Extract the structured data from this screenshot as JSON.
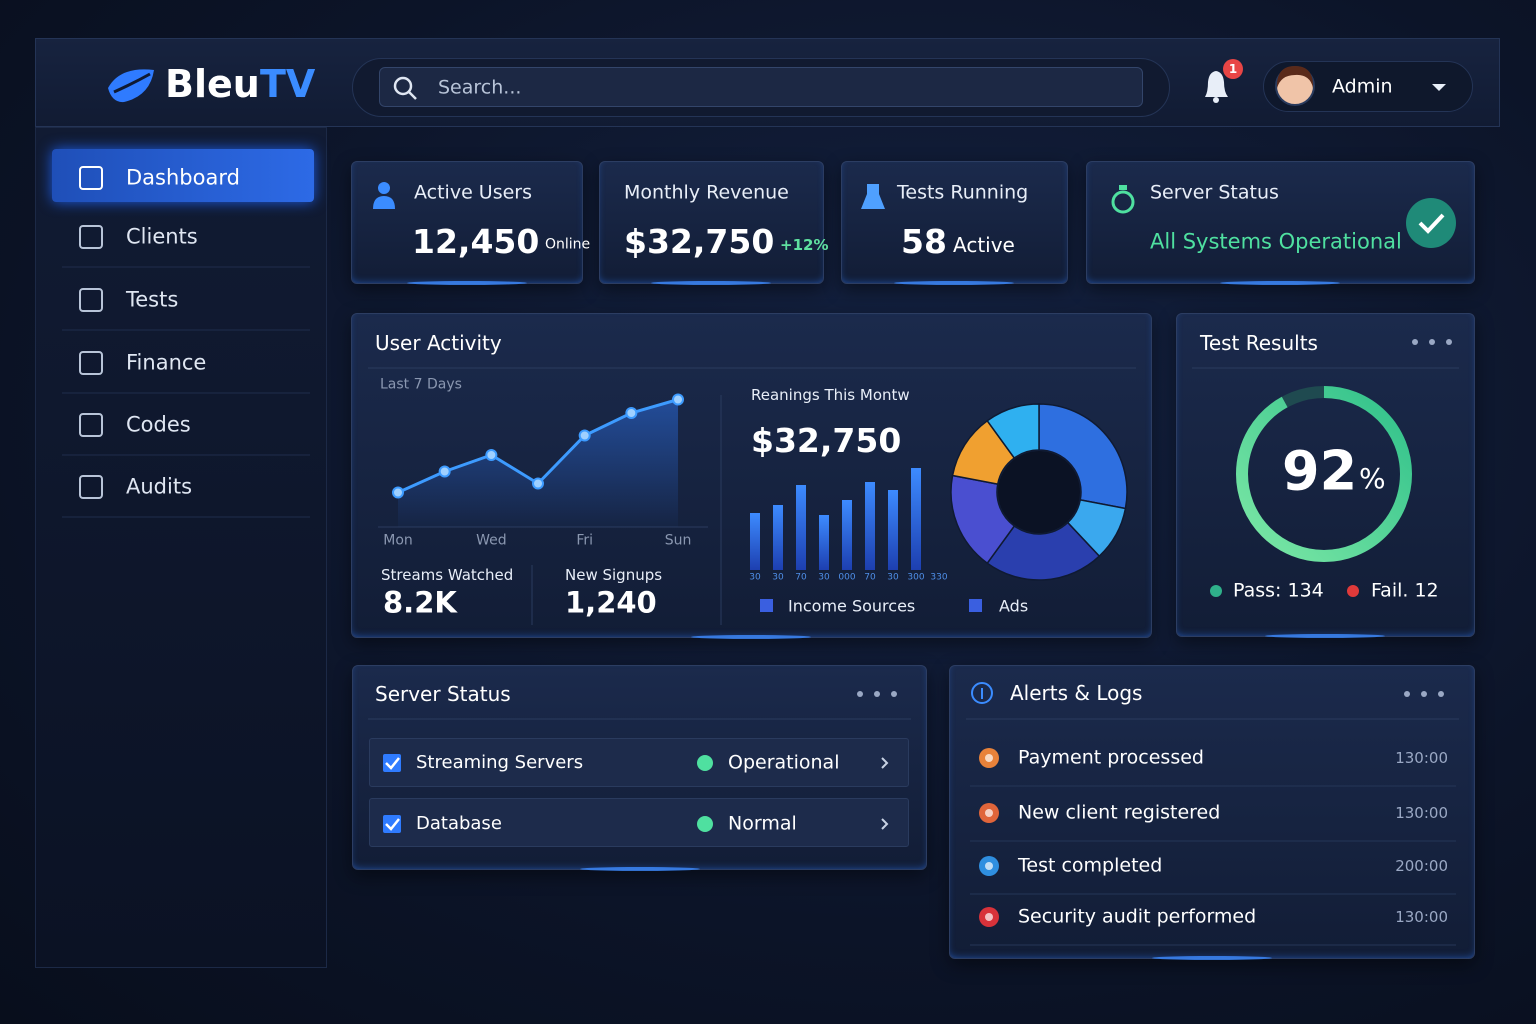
{
  "header": {
    "brand_main": "Bleu",
    "brand_accent": "TV",
    "search_placeholder": "Search...",
    "notification_count": "1",
    "user_name": "Admin"
  },
  "sidebar": {
    "items": [
      "Dashboard",
      "Clients",
      "Tests",
      "Finance",
      "Codes",
      "Audits"
    ],
    "active": 0
  },
  "stat_cards": [
    {
      "label": "Active Users",
      "value": "12,450",
      "note": "Online"
    },
    {
      "label": "Monthly Revenue",
      "value": "$32,750",
      "note": "+12%"
    },
    {
      "label": "Tests Running",
      "value": "58",
      "note": "Active"
    },
    {
      "label": "Server Status",
      "value": "All Systems Operational"
    }
  ],
  "user_activity": {
    "title": "User Activity",
    "period": "Last 7 Days",
    "chart": {
      "type": "line",
      "categories": [
        "Mon",
        null,
        "Wed",
        null,
        "Fri",
        null,
        "Sun"
      ],
      "values": [
        23,
        37,
        48,
        29,
        61,
        76,
        85
      ],
      "ylim": [
        0,
        100
      ],
      "color": "#3d9bff"
    },
    "metrics": [
      {
        "label": "Streams Watched",
        "value": "8.2K"
      },
      {
        "label": "New Signups",
        "value": "1,240"
      }
    ],
    "earnings": {
      "title": "Reanings This Montw",
      "value": "$32,750",
      "bars": {
        "type": "bar",
        "categories": [
          "30",
          "30",
          "70",
          "30",
          "000",
          "70",
          "30",
          "300",
          "330"
        ],
        "values": [
          57,
          65,
          85,
          55,
          70,
          88,
          80,
          102,
          null
        ],
        "ylim": [
          0,
          110
        ],
        "color": "#2f6be8"
      },
      "donut": {
        "type": "pie",
        "values": [
          28,
          10,
          22,
          18,
          12,
          10
        ],
        "colors": [
          "#2e6fe0",
          "#3aa8ee",
          "#2a3fae",
          "#4a4fd0",
          "#f0a030",
          "#2fb0f0"
        ]
      },
      "legend": [
        {
          "name": "Income Sources",
          "color": "#3a5fe0"
        },
        {
          "name": "Ads",
          "color": "#3a5fe0"
        }
      ]
    }
  },
  "test_results": {
    "title": "Test Results",
    "percent": 92,
    "unit": "%",
    "pass": "Pass: 134",
    "fail": "Fail. 12"
  },
  "server_status": {
    "title": "Server Status",
    "rows": [
      {
        "name": "Streaming Servers",
        "status": "Operational"
      },
      {
        "name": "Database",
        "status": "Normal"
      }
    ]
  },
  "alerts": {
    "title": "Alerts & Logs",
    "items": [
      {
        "text": "Payment processed",
        "time": "130:00",
        "color": "#e8823a"
      },
      {
        "text": "New client registered",
        "time": "130:00",
        "color": "#e0653a"
      },
      {
        "text": "Test completed",
        "time": "200:00",
        "color": "#2f8fe0"
      },
      {
        "text": "Security audit performed",
        "time": "130:00",
        "color": "#d8323a"
      }
    ]
  }
}
